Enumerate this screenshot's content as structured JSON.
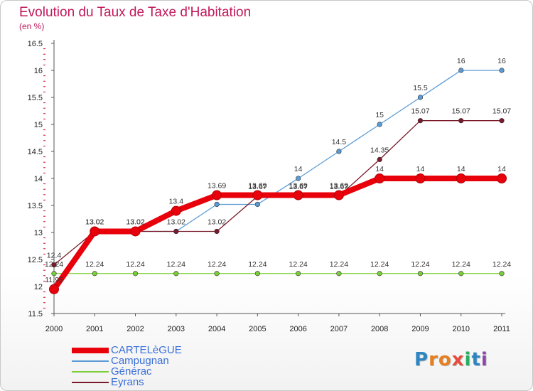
{
  "header": {
    "title": "Evolution du Taux de Taxe d'Habitation",
    "unit": "(en %)"
  },
  "logo": {
    "text": "Proxiti",
    "colors": [
      "#2e86c1",
      "#e67e22",
      "#e67e22",
      "#e74c3c",
      "#27ae60",
      "#2e86c1",
      "#8e44ad"
    ]
  },
  "chart_data": {
    "type": "line",
    "title": "Evolution du Taux de Taxe d'Habitation",
    "ylabel": "(en %)",
    "xlabel": "",
    "x": [
      "2000",
      "2001",
      "2002",
      "2003",
      "2004",
      "2005",
      "2006",
      "2007",
      "2008",
      "2009",
      "2010",
      "2011"
    ],
    "ylim": [
      11.5,
      16.5
    ],
    "yticks": [
      "11.5",
      "12",
      "12.5",
      "13",
      "13.5",
      "14",
      "14.5",
      "15",
      "15.5",
      "16",
      "16.5"
    ],
    "grid": false,
    "legend": "bottom-left",
    "series": [
      {
        "name": "CARTELèGUE",
        "color": "#e8000b",
        "values": [
          11.95,
          13.02,
          13.02,
          13.4,
          13.69,
          13.69,
          13.69,
          13.69,
          14,
          14,
          14,
          14
        ],
        "labels": [
          "11.95",
          "13.02",
          "13.02",
          "13.4",
          "13.69",
          "13.69",
          "13.69",
          "13.69",
          "14",
          "14",
          "14",
          "14"
        ]
      },
      {
        "name": "Campugnan",
        "color": "#5b9bd5",
        "values": [
          11.95,
          13.02,
          13.02,
          13.02,
          13.52,
          13.52,
          14,
          14.5,
          15,
          15.5,
          16,
          16
        ],
        "labels": [
          "",
          "",
          "",
          "",
          "",
          "",
          "14",
          "14.5",
          "15",
          "15.5",
          "16",
          "16"
        ]
      },
      {
        "name": "Générac",
        "color": "#7ccd3a",
        "values": [
          12.24,
          12.24,
          12.24,
          12.24,
          12.24,
          12.24,
          12.24,
          12.24,
          12.24,
          12.24,
          12.24,
          12.24
        ],
        "labels": [
          "12.24",
          "12.24",
          "12.24",
          "12.24",
          "12.24",
          "12.24",
          "12.24",
          "12.24",
          "12.24",
          "12.24",
          "12.24",
          "12.24"
        ]
      },
      {
        "name": "Eyrans",
        "color": "#7b1a2a",
        "values": [
          12.4,
          13.02,
          13.02,
          13.02,
          13.02,
          13.67,
          13.67,
          13.67,
          14.35,
          15.07,
          15.07,
          15.07
        ],
        "labels": [
          "12.4",
          "13.02",
          "13.02",
          "13.02",
          "13.02",
          "13.67",
          "13.67",
          "13.67",
          "14.35",
          "15.07",
          "15.07",
          "15.07"
        ]
      }
    ]
  }
}
